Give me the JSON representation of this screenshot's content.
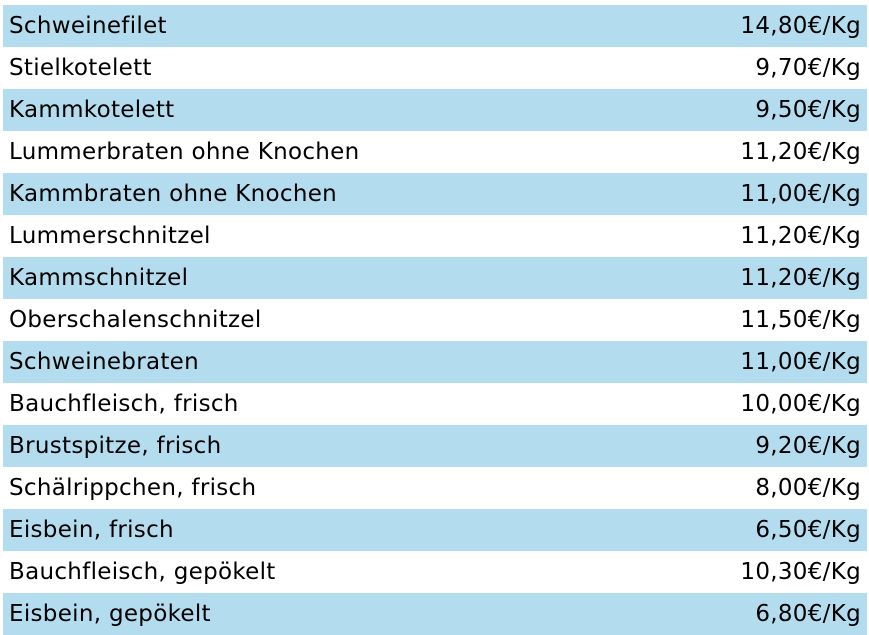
{
  "colors": {
    "row_shade": "#b4dcef",
    "row_plain": "#ffffff",
    "text": "#000000"
  },
  "rows": [
    {
      "name": "Schweinefilet",
      "price": "14,80€/Kg"
    },
    {
      "name": "Stielkotelett",
      "price": "9,70€/Kg"
    },
    {
      "name": "Kammkotelett",
      "price": "9,50€/Kg"
    },
    {
      "name": "Lummerbraten ohne Knochen",
      "price": "11,20€/Kg"
    },
    {
      "name": "Kammbraten ohne Knochen",
      "price": "11,00€/Kg"
    },
    {
      "name": "Lummerschnitzel",
      "price": "11,20€/Kg"
    },
    {
      "name": "Kammschnitzel",
      "price": "11,20€/Kg"
    },
    {
      "name": "Oberschalenschnitzel",
      "price": "11,50€/Kg"
    },
    {
      "name": "Schweinebraten",
      "price": "11,00€/Kg"
    },
    {
      "name": "Bauchfleisch, frisch",
      "price": "10,00€/Kg"
    },
    {
      "name": "Brustspitze, frisch",
      "price": "9,20€/Kg"
    },
    {
      "name": "Schälrippchen, frisch",
      "price": "8,00€/Kg"
    },
    {
      "name": "Eisbein, frisch",
      "price": "6,50€/Kg"
    },
    {
      "name": "Bauchfleisch, gepökelt",
      "price": "10,30€/Kg"
    },
    {
      "name": "Eisbein, gepökelt",
      "price": "6,80€/Kg"
    }
  ]
}
